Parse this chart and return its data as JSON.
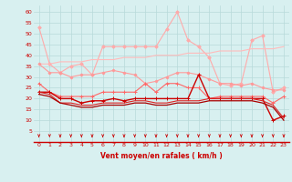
{
  "x": [
    0,
    1,
    2,
    3,
    4,
    5,
    6,
    7,
    8,
    9,
    10,
    11,
    12,
    13,
    14,
    15,
    16,
    17,
    18,
    19,
    20,
    21,
    22,
    23
  ],
  "series": [
    {
      "name": "rafales_max",
      "color": "#ffaaaa",
      "linewidth": 0.8,
      "marker": "D",
      "markersize": 1.8,
      "values": [
        53,
        36,
        32,
        35,
        36,
        31,
        44,
        44,
        44,
        44,
        44,
        44,
        52,
        60,
        47,
        44,
        39,
        27,
        26,
        27,
        47,
        49,
        23,
        25
      ]
    },
    {
      "name": "rafales_trend",
      "color": "#ffbbbb",
      "linewidth": 0.8,
      "marker": null,
      "markersize": 0,
      "values": [
        36,
        36,
        37,
        37,
        37,
        38,
        38,
        38,
        39,
        39,
        39,
        40,
        40,
        40,
        41,
        41,
        41,
        42,
        42,
        42,
        43,
        43,
        43,
        44
      ]
    },
    {
      "name": "rafales_upper",
      "color": "#ff9999",
      "linewidth": 0.8,
      "marker": "D",
      "markersize": 1.5,
      "values": [
        36,
        32,
        32,
        30,
        31,
        31,
        32,
        33,
        32,
        31,
        27,
        28,
        30,
        32,
        32,
        31,
        29,
        27,
        27,
        26,
        27,
        25,
        24,
        24
      ]
    },
    {
      "name": "wind_upper",
      "color": "#ff6666",
      "linewidth": 0.8,
      "marker": "+",
      "markersize": 2.5,
      "values": [
        27,
        23,
        21,
        21,
        21,
        21,
        23,
        23,
        23,
        23,
        27,
        23,
        27,
        27,
        25,
        25,
        20,
        21,
        21,
        21,
        21,
        21,
        18,
        21
      ]
    },
    {
      "name": "wind_mid",
      "color": "#cc0000",
      "linewidth": 1.0,
      "marker": "+",
      "markersize": 2.5,
      "values": [
        23,
        23,
        20,
        20,
        18,
        19,
        19,
        20,
        19,
        20,
        20,
        20,
        20,
        20,
        20,
        31,
        20,
        20,
        20,
        20,
        20,
        20,
        10,
        12
      ]
    },
    {
      "name": "wind_lower",
      "color": "#dd2222",
      "linewidth": 0.8,
      "marker": null,
      "markersize": 0,
      "values": [
        23,
        22,
        18,
        18,
        17,
        17,
        18,
        18,
        18,
        19,
        19,
        18,
        18,
        19,
        19,
        19,
        20,
        20,
        20,
        20,
        20,
        19,
        17,
        11
      ]
    },
    {
      "name": "wind_min",
      "color": "#aa0000",
      "linewidth": 0.9,
      "marker": null,
      "markersize": 0,
      "values": [
        22,
        21,
        18,
        17,
        16,
        16,
        17,
        17,
        17,
        18,
        18,
        17,
        17,
        18,
        18,
        18,
        19,
        19,
        19,
        19,
        19,
        18,
        16,
        10
      ]
    }
  ],
  "xlim": [
    -0.5,
    23.5
  ],
  "ylim": [
    0,
    63
  ],
  "yticks": [
    5,
    10,
    15,
    20,
    25,
    30,
    35,
    40,
    45,
    50,
    55,
    60
  ],
  "xticks": [
    0,
    1,
    2,
    3,
    4,
    5,
    6,
    7,
    8,
    9,
    10,
    11,
    12,
    13,
    14,
    15,
    16,
    17,
    18,
    19,
    20,
    21,
    22,
    23
  ],
  "xlabel": "Vent moyen/en rafales ( km/h )",
  "background_color": "#d8f0f0",
  "grid_color": "#b8dada",
  "tick_color": "#cc0000",
  "label_color": "#cc0000",
  "arrow_color": "#cc0000",
  "axis_line_color": "#cc0000"
}
